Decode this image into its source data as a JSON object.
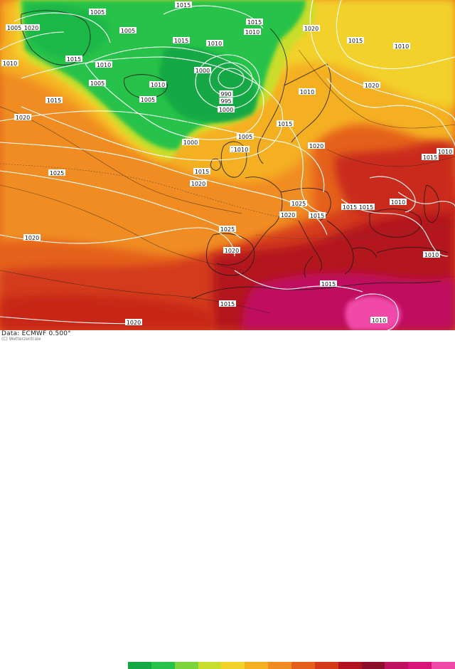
{
  "footer": {
    "data_source": "Data: ECMWF  0.500°",
    "copyright": "(C) Wetterzentrale"
  },
  "colors": {
    "deep_red": "#b3121f",
    "red": "#d33a1a",
    "orange_red": "#e5611b",
    "orange": "#f08c22",
    "amber": "#f5b021",
    "yellow": "#f2d12b",
    "yellow_green": "#c9dd2c",
    "light_green": "#7bd53a",
    "green": "#27c24a",
    "dark_green": "#14a845",
    "magenta": "#d8147a",
    "pink": "#f04aa8",
    "isobar": "#ffffff",
    "coast": "#1a1a1a"
  },
  "scale_colors": [
    "#14a845",
    "#27c24a",
    "#7bd53a",
    "#c9dd2c",
    "#f2d12b",
    "#f5b021",
    "#f08c22",
    "#e5611b",
    "#d33a1a",
    "#b3121f",
    "#8c0f2a",
    "#c01060",
    "#d8147a",
    "#f04aa8"
  ],
  "isobar_labels": [
    {
      "text": "1015"
    },
    {
      "text": "1005"
    },
    {
      "text": "1005"
    },
    {
      "text": "1020"
    },
    {
      "text": "1010"
    },
    {
      "text": "1015"
    },
    {
      "text": "1010"
    },
    {
      "text": "1005"
    },
    {
      "text": "1005"
    },
    {
      "text": "1015"
    },
    {
      "text": "1010"
    },
    {
      "text": "1000"
    },
    {
      "text": "1010"
    },
    {
      "text": "1005"
    },
    {
      "text": "990"
    },
    {
      "text": "995"
    },
    {
      "text": "1000"
    },
    {
      "text": "1010"
    },
    {
      "text": "1015"
    },
    {
      "text": "1020"
    },
    {
      "text": "1010"
    },
    {
      "text": "1015"
    },
    {
      "text": "1010"
    },
    {
      "text": "1020"
    },
    {
      "text": "1005"
    },
    {
      "text": "1015"
    },
    {
      "text": "1000"
    },
    {
      "text": "1010"
    },
    {
      "text": "1020"
    },
    {
      "text": "1015"
    },
    {
      "text": "1025"
    },
    {
      "text": "1015"
    },
    {
      "text": "1020"
    },
    {
      "text": "1025"
    },
    {
      "text": "1025"
    },
    {
      "text": "1020"
    },
    {
      "text": "1015"
    },
    {
      "text": "1015"
    },
    {
      "text": "1015"
    },
    {
      "text": "1010"
    },
    {
      "text": "1015"
    },
    {
      "text": "1010"
    },
    {
      "text": "1020"
    },
    {
      "text": "1015"
    },
    {
      "text": "1015"
    },
    {
      "text": "1010"
    },
    {
      "text": "1020"
    },
    {
      "text": "1010"
    },
    {
      "text": "1010"
    },
    {
      "text": "1020"
    },
    {
      "text": "1020"
    }
  ]
}
